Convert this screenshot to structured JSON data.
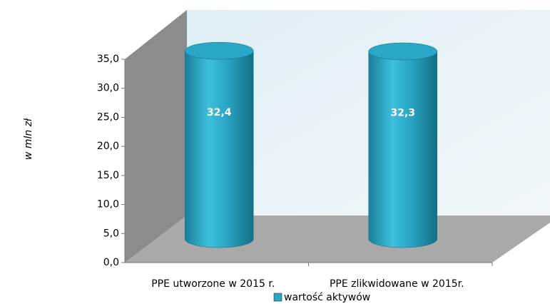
{
  "chart_data": {
    "type": "bar",
    "y_label": "w mln zł",
    "categories": [
      "PPE utworzone w 2015 r.",
      "PPE zlikwidowane w 2015r."
    ],
    "series": [
      {
        "name": "wartość aktywów",
        "color": "#2aa6c6",
        "values": [
          32.4,
          32.3
        ],
        "value_labels": [
          "32,4",
          "32,3"
        ]
      }
    ],
    "ylim": [
      0,
      35
    ],
    "yticks": [
      {
        "value": 0,
        "label": "0,0"
      },
      {
        "value": 5,
        "label": "5,0"
      },
      {
        "value": 10,
        "label": "10,0"
      },
      {
        "value": 15,
        "label": "15,0"
      },
      {
        "value": 20,
        "label": "20,0"
      },
      {
        "value": 25,
        "label": "25,0"
      },
      {
        "value": 30,
        "label": "30,0"
      },
      {
        "value": 35,
        "label": "35,0"
      }
    ]
  }
}
